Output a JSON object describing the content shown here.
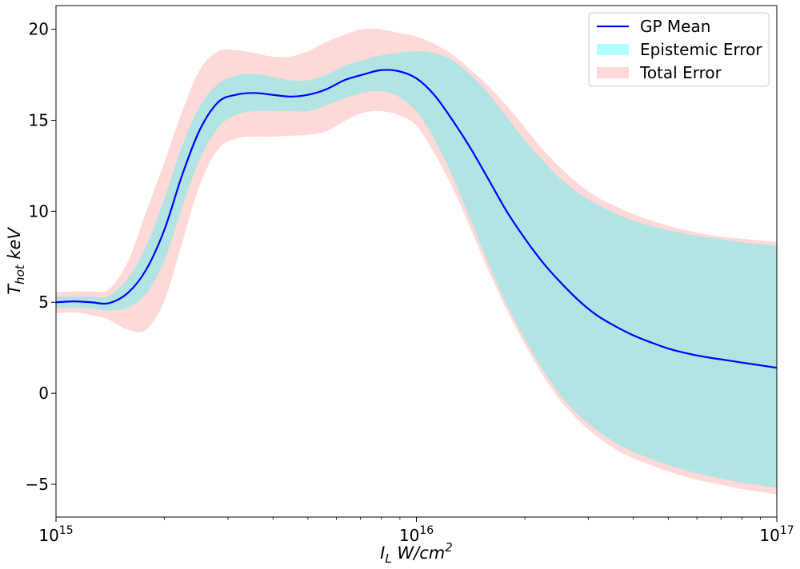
{
  "chart_data": {
    "type": "line",
    "xscale": "log",
    "xlim": [
      1000000000000000.0,
      1e+17
    ],
    "ylim": [
      -6.8,
      21.3
    ],
    "grid": false,
    "legend_position": "top-right",
    "xlabel_base": "I",
    "xlabel_sub": "L",
    "xlabel_units": " W/cm",
    "xlabel_sup": "2",
    "ylabel_base": "T",
    "ylabel_sub": "hot",
    "ylabel_units": " keV",
    "x_ticks": [
      {
        "value": 1000000000000000.0,
        "base": "10",
        "exp": "15"
      },
      {
        "value": 1e+16,
        "base": "10",
        "exp": "16"
      },
      {
        "value": 1e+17,
        "base": "10",
        "exp": "17"
      }
    ],
    "y_ticks": [
      {
        "value": -5,
        "label": "−5"
      },
      {
        "value": 0,
        "label": "0"
      },
      {
        "value": 5,
        "label": "5"
      },
      {
        "value": 10,
        "label": "10"
      },
      {
        "value": 15,
        "label": "15"
      },
      {
        "value": 20,
        "label": "20"
      }
    ],
    "x": [
      1000000000000000.0,
      1120000000000000.0,
      1250000000000000.0,
      1400000000000000.0,
      1580000000000000.0,
      1780000000000000.0,
      2000000000000000.0,
      2240000000000000.0,
      2510000000000000.0,
      2820000000000000.0,
      3160000000000000.0,
      3550000000000000.0,
      3980000000000000.0,
      4470000000000000.0,
      5010000000000000.0,
      5620000000000000.0,
      6310000000000000.0,
      7080000000000000.0,
      7940000000000000.0,
      8910000000000000.0,
      1e+16,
      1.12e+16,
      1.26e+16,
      1.41e+16,
      1.58e+16,
      1.78e+16,
      2e+16,
      2.24e+16,
      2.51e+16,
      2.82e+16,
      3.16e+16,
      3.55e+16,
      3.98e+16,
      4.47e+16,
      5.01e+16,
      5.62e+16,
      6.31e+16,
      7.08e+16,
      7.94e+16,
      8.91e+16,
      1e+17
    ],
    "series": [
      {
        "name": "GP Mean",
        "kind": "line",
        "color": "#0000ff",
        "values": [
          5.0,
          5.05,
          5.0,
          4.95,
          5.5,
          6.8,
          9.0,
          12.0,
          14.5,
          16.0,
          16.4,
          16.5,
          16.4,
          16.3,
          16.4,
          16.7,
          17.2,
          17.5,
          17.75,
          17.7,
          17.3,
          16.4,
          15.0,
          13.5,
          11.8,
          10.0,
          8.5,
          7.2,
          6.1,
          5.1,
          4.3,
          3.7,
          3.2,
          2.8,
          2.45,
          2.2,
          2.0,
          1.85,
          1.7,
          1.55,
          1.4
        ]
      },
      {
        "name": "Epistemic Error",
        "kind": "band",
        "color": "#00ffff",
        "lower": [
          4.7,
          4.7,
          4.65,
          4.55,
          4.7,
          5.5,
          7.3,
          10.2,
          12.9,
          14.6,
          15.3,
          15.5,
          15.5,
          15.5,
          15.5,
          15.8,
          16.2,
          16.5,
          16.6,
          16.3,
          15.5,
          14.0,
          11.9,
          9.6,
          7.2,
          4.9,
          3.0,
          1.3,
          -0.1,
          -1.2,
          -2.0,
          -2.7,
          -3.2,
          -3.6,
          -3.95,
          -4.25,
          -4.5,
          -4.7,
          -4.9,
          -5.05,
          -5.2
        ],
        "upper": [
          5.3,
          5.3,
          5.3,
          5.35,
          6.3,
          8.1,
          10.7,
          13.6,
          15.8,
          17.0,
          17.45,
          17.55,
          17.4,
          17.2,
          17.2,
          17.5,
          18.0,
          18.3,
          18.55,
          18.7,
          18.8,
          18.7,
          18.3,
          17.5,
          16.5,
          15.2,
          13.9,
          12.8,
          11.8,
          11.0,
          10.4,
          9.9,
          9.5,
          9.2,
          8.95,
          8.75,
          8.6,
          8.45,
          8.3,
          8.2,
          8.1
        ]
      },
      {
        "name": "Total Error",
        "kind": "band",
        "color": "#ff9999",
        "lower": [
          4.4,
          4.45,
          4.3,
          4.05,
          3.5,
          3.5,
          5.1,
          8.3,
          11.5,
          13.4,
          14.0,
          14.1,
          14.1,
          14.15,
          14.2,
          14.4,
          14.95,
          15.4,
          15.5,
          15.3,
          14.7,
          13.2,
          11.3,
          9.1,
          6.8,
          4.6,
          2.7,
          1.0,
          -0.4,
          -1.5,
          -2.35,
          -3.05,
          -3.55,
          -3.95,
          -4.3,
          -4.6,
          -4.85,
          -5.05,
          -5.25,
          -5.4,
          -5.55
        ],
        "upper": [
          5.55,
          5.6,
          5.6,
          5.7,
          7.2,
          10.0,
          12.7,
          15.5,
          17.8,
          18.8,
          18.85,
          18.7,
          18.5,
          18.5,
          18.8,
          19.3,
          19.7,
          20.0,
          20.0,
          19.8,
          19.6,
          19.2,
          18.6,
          17.8,
          16.9,
          15.8,
          14.6,
          13.4,
          12.4,
          11.5,
          10.8,
          10.3,
          9.85,
          9.5,
          9.2,
          8.95,
          8.75,
          8.6,
          8.5,
          8.4,
          8.3
        ]
      }
    ]
  }
}
